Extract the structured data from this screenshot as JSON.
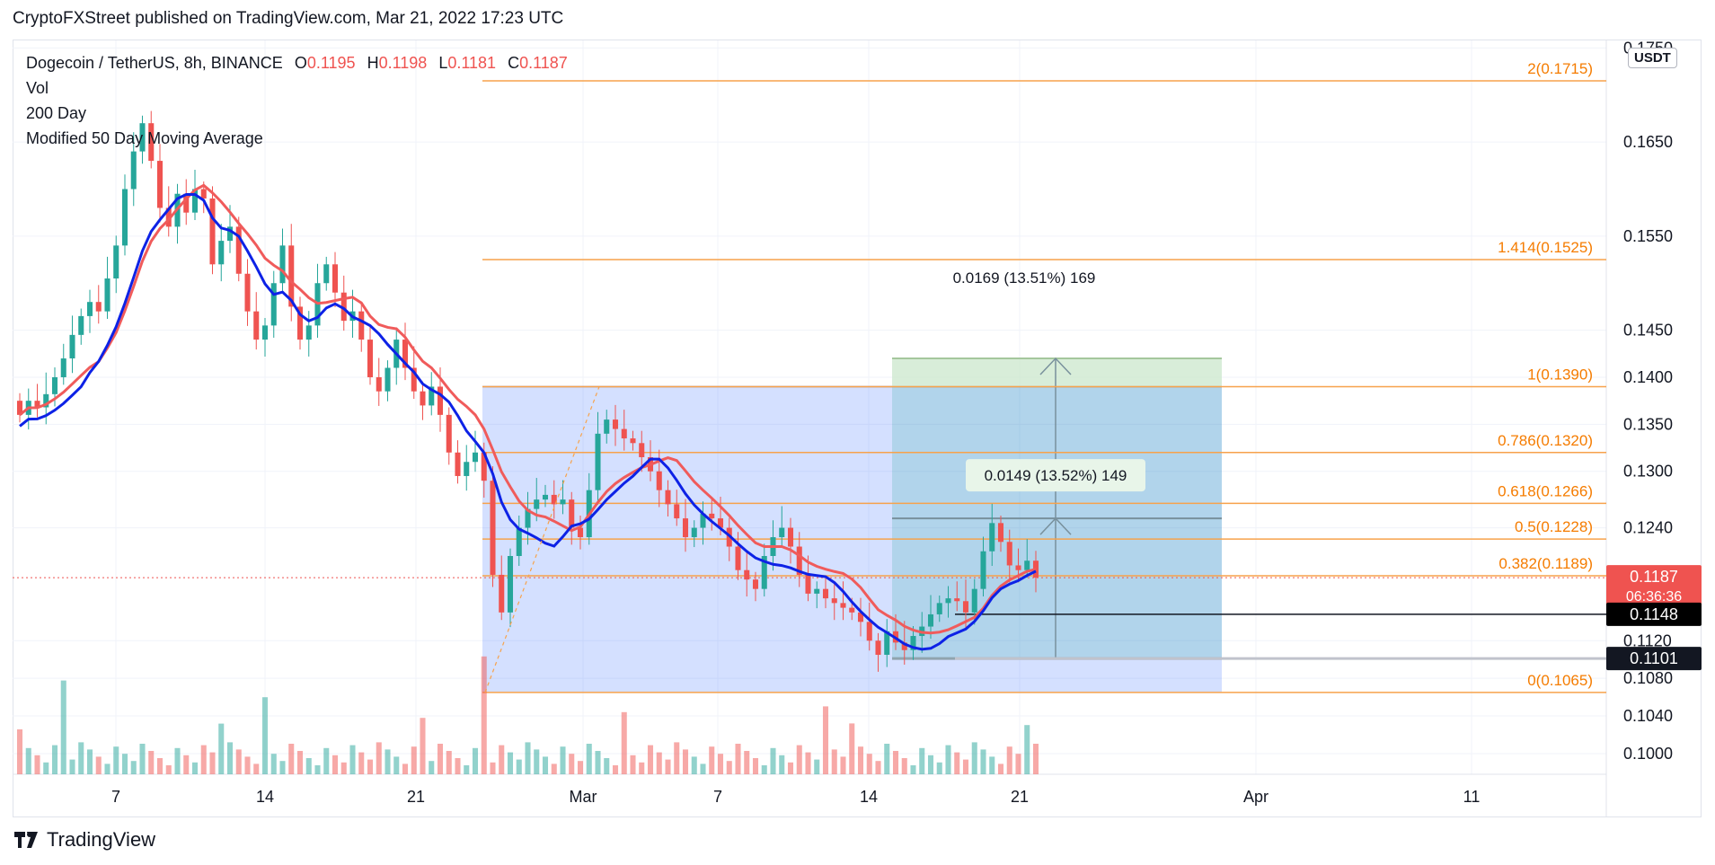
{
  "header": {
    "published": "CryptoFXStreet published on TradingView.com, Mar 21, 2022 17:23 UTC"
  },
  "legend": {
    "symbol": "Dogecoin / TetherUS, 8h, BINANCE",
    "o_label": "O",
    "o": "0.1195",
    "h_label": "H",
    "h": "0.1198",
    "l_label": "L",
    "l": "0.1181",
    "c_label": "C",
    "c": "0.1187",
    "vol": "Vol",
    "ma200": "200 Day",
    "ma50": "Modified 50 Day Moving Average"
  },
  "currency_button": "USDT",
  "brand": {
    "name": "TradingView"
  },
  "colors": {
    "up": "#26a69a",
    "down": "#ef5350",
    "fib": "#f7a24b",
    "fibText": "#f57c00",
    "range": "#2962ff",
    "ma50": "#0d22e6",
    "ma200": "#f05b5b",
    "target": "#8bc34a",
    "accent": "#131722"
  },
  "chart_data": {
    "type": "candlestick",
    "ylim": [
      0.0978,
      0.1758
    ],
    "y_ticks": [
      "0.1000",
      "0.1040",
      "0.1080",
      "0.1120",
      "0.1240",
      "0.1300",
      "0.1350",
      "0.1400",
      "0.1450",
      "0.1550",
      "0.1650",
      "0.1750"
    ],
    "x_ticks": [
      "7",
      "14",
      "21",
      "Mar",
      "7",
      "14",
      "21",
      "Apr",
      "11"
    ],
    "fib_levels": [
      {
        "label": "2(0.1715)",
        "value": 0.1715
      },
      {
        "label": "1.414(0.1525)",
        "value": 0.1525
      },
      {
        "label": "1(0.1390)",
        "value": 0.139
      },
      {
        "label": "0.786(0.1320)",
        "value": 0.132
      },
      {
        "label": "0.618(0.1266)",
        "value": 0.1266
      },
      {
        "label": "0.5(0.1228)",
        "value": 0.1228
      },
      {
        "label": "0.382(0.1189)",
        "value": 0.1189
      },
      {
        "label": "0(0.1065)",
        "value": 0.1065
      }
    ],
    "price_badges": [
      {
        "label": "0.1187",
        "sub": "06:36:36",
        "value": 0.1187,
        "color": "#ef5350"
      },
      {
        "label": "0.1148",
        "value": 0.1148,
        "color": "#000000"
      },
      {
        "label": "0.1101",
        "value": 0.1101,
        "color": "#131722"
      }
    ],
    "measure_outer": "0.0169 (13.51%) 169",
    "measure_inner": "0.0149 (13.52%) 149",
    "range_box": {
      "low": 0.1065,
      "high": 0.139
    },
    "target_box": {
      "low": 0.1101,
      "high": 0.142,
      "mid": 0.125
    },
    "close_series": [
      0.136,
      0.1375,
      0.1368,
      0.1382,
      0.14,
      0.142,
      0.1445,
      0.1465,
      0.148,
      0.147,
      0.1505,
      0.154,
      0.16,
      0.164,
      0.167,
      0.163,
      0.158,
      0.156,
      0.1595,
      0.1575,
      0.16,
      0.159,
      0.152,
      0.1545,
      0.156,
      0.151,
      0.147,
      0.144,
      0.1455,
      0.15,
      0.154,
      0.1475,
      0.144,
      0.1455,
      0.15,
      0.152,
      0.149,
      0.146,
      0.147,
      0.144,
      0.14,
      0.1385,
      0.141,
      0.144,
      0.141,
      0.1385,
      0.137,
      0.139,
      0.136,
      0.132,
      0.1295,
      0.131,
      0.132,
      0.129,
      0.119,
      0.115,
      0.121,
      0.124,
      0.126,
      0.127,
      0.1275,
      0.1265,
      0.127,
      0.124,
      0.123,
      0.128,
      0.134,
      0.1355,
      0.1345,
      0.1335,
      0.133,
      0.1315,
      0.13,
      0.128,
      0.1265,
      0.125,
      0.123,
      0.124,
      0.1255,
      0.125,
      0.124,
      0.122,
      0.1195,
      0.1185,
      0.1175,
      0.121,
      0.123,
      0.124,
      0.122,
      0.119,
      0.117,
      0.1175,
      0.1165,
      0.116,
      0.1155,
      0.115,
      0.114,
      0.112,
      0.1105,
      0.113,
      0.1118,
      0.111,
      0.1125,
      0.1135,
      0.1148,
      0.116,
      0.1165,
      0.1162,
      0.115,
      0.1175,
      0.1215,
      0.1245,
      0.1225,
      0.12,
      0.1195,
      0.1205,
      0.1187
    ]
  }
}
